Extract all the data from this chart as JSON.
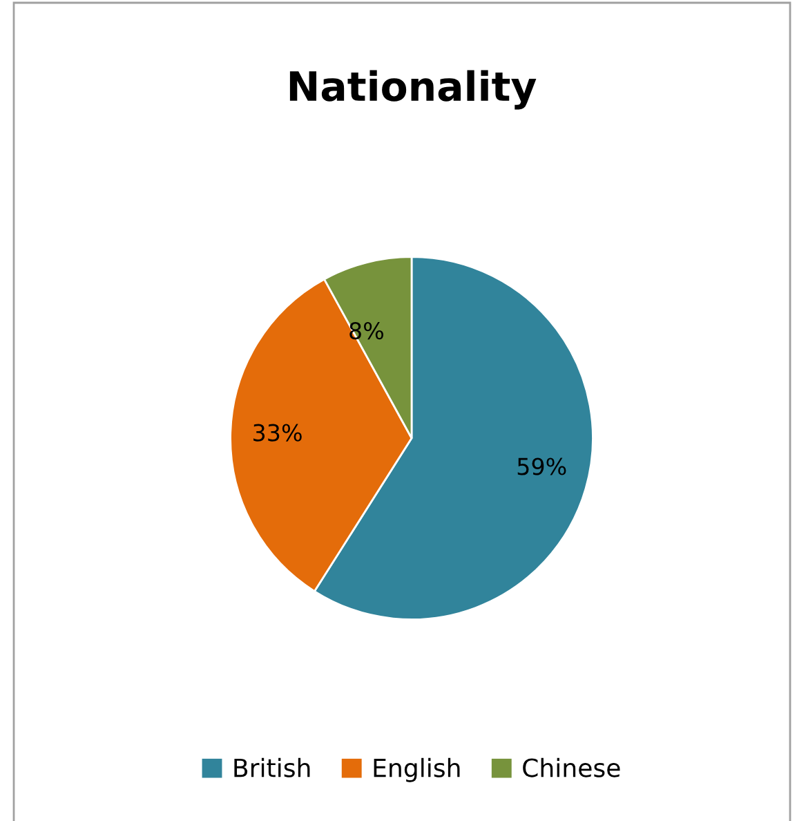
{
  "chart_data": {
    "type": "pie",
    "title": "Nationality",
    "categories": [
      "British",
      "English",
      "Chinese"
    ],
    "values": [
      59,
      33,
      8
    ],
    "colors": [
      "#31849b",
      "#e46c0a",
      "#77933c"
    ],
    "value_labels": [
      "59%",
      "33%",
      "8%"
    ],
    "legend": "bottom"
  }
}
